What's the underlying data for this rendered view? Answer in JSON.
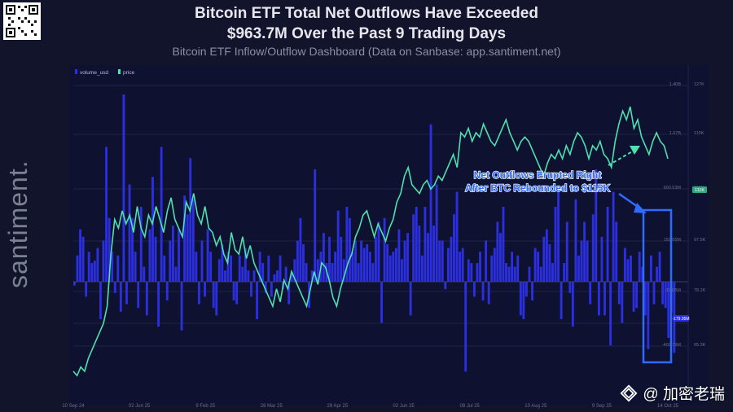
{
  "header": {
    "title_line1": "Bitcoin ETF Total Net Outflows Have Exceeded",
    "title_line2": "$963.7M Over the Past 9 Trading Days",
    "subtitle": "Bitcoin ETF Inflow/Outflow Dashboard (Data on Sanbase: app.santiment.net)"
  },
  "watermark": "santiment.",
  "footer": {
    "brand_label": "@ 加密老瑞"
  },
  "colors": {
    "bar": "#2b2fe0",
    "line": "#4fe0b0",
    "annotation": "#2f6bff",
    "panel": "#0e1230"
  },
  "chart_data": {
    "type": "bar",
    "legend": [
      "volume_usd",
      "price"
    ],
    "x_ticks": [
      "10 Sep 24",
      "02 Jun 25",
      "9 Feb 25",
      "28 Mar 25",
      "29 Apr 25",
      "02 Jun 25",
      "08 Jul 25",
      "10 Aug 25",
      "9 Sep 25",
      "14 Oct 25"
    ],
    "left_axis_ticks": [
      "1.40B",
      "1.07B",
      "600.53M",
      "150.05M",
      "-19.05M",
      "-400.79M"
    ],
    "right_axis_ticks": [
      "127K",
      "115K",
      "110K",
      "97.5K",
      "78.2K",
      "65.3K"
    ],
    "price_badge": "111K",
    "neg_badge": "-179.95M",
    "annotation": "Net Outflows Erupted Right After BTC Rebounded to $115K",
    "bars": [
      -5,
      35,
      70,
      60,
      -20,
      40,
      25,
      28,
      45,
      -50,
      55,
      180,
      85,
      40,
      -15,
      35,
      -40,
      250,
      -30,
      130,
      85,
      40,
      -35,
      100,
      20,
      -45,
      70,
      140,
      60,
      -60,
      180,
      35,
      -25,
      55,
      75,
      20,
      70,
      -65,
      115,
      90,
      165,
      110,
      40,
      -30,
      55,
      -20,
      70,
      40,
      -35,
      -45,
      30,
      50,
      15,
      40,
      35,
      -25,
      -30,
      35,
      20,
      45,
      15,
      -20,
      15,
      -50,
      40,
      25,
      -15,
      35,
      -20,
      10,
      15,
      35,
      -10,
      20,
      -30,
      10,
      30,
      55,
      85,
      50,
      25,
      -35,
      15,
      150,
      30,
      40,
      65,
      25,
      60,
      25,
      40,
      95,
      60,
      30,
      100,
      85,
      40,
      55,
      25,
      55,
      45,
      50,
      40,
      25,
      60,
      80,
      -55,
      85,
      50,
      35,
      40,
      45,
      70,
      30,
      55,
      65,
      -45,
      90,
      100,
      75,
      35,
      100,
      65,
      210,
      75,
      130,
      55,
      55,
      -10,
      45,
      60,
      90,
      120,
      40,
      45,
      -120,
      30,
      25,
      -20,
      25,
      40,
      -25,
      55,
      -30,
      35,
      45,
      80,
      65,
      100,
      25,
      20,
      40,
      20,
      35,
      -45,
      -50,
      -20,
      20,
      -25,
      45,
      40,
      20,
      60,
      70,
      50,
      25,
      100,
      120,
      -50,
      25,
      80,
      -15,
      -60,
      110,
      35,
      55,
      80,
      55,
      -30,
      90,
      150,
      -45,
      60,
      -45,
      100,
      -85,
      120,
      80,
      -30,
      -55,
      45,
      30,
      35,
      -40,
      -35,
      40,
      20,
      -45,
      -90,
      35,
      -30,
      20,
      40,
      -30,
      -35,
      -75,
      -40,
      -95
    ],
    "price": [
      63,
      62,
      64,
      63,
      66,
      68,
      70,
      72,
      74,
      78,
      90,
      98,
      96,
      100,
      97,
      99,
      95,
      101,
      96,
      94,
      99,
      97,
      101,
      98,
      95,
      100,
      103,
      98,
      96,
      94,
      102,
      100,
      104,
      99,
      97,
      101,
      96,
      95,
      92,
      94,
      90,
      88,
      95,
      91,
      90,
      94,
      89,
      92,
      88,
      86,
      84,
      82,
      80,
      78,
      82,
      79,
      84,
      82,
      86,
      84,
      82,
      80,
      78,
      82,
      86,
      83,
      88,
      87,
      84,
      80,
      78,
      82,
      85,
      88,
      90,
      94,
      96,
      99,
      100,
      97,
      94,
      97,
      95,
      93,
      96,
      98,
      102,
      104,
      108,
      110,
      106,
      105,
      104,
      106,
      107,
      105,
      106,
      108,
      107,
      109,
      111,
      113,
      110,
      118,
      117,
      119,
      116,
      118,
      117,
      120,
      118,
      116,
      115,
      117,
      119,
      121,
      118,
      116,
      114,
      116,
      117,
      116,
      114,
      112,
      110,
      108,
      111,
      113,
      112,
      114,
      112,
      115,
      113,
      116,
      118,
      117,
      115,
      112,
      115,
      114,
      116,
      113,
      112,
      110,
      116,
      120,
      123,
      121,
      124,
      119,
      121,
      117,
      115,
      113,
      116,
      118,
      116,
      115,
      112
    ]
  }
}
